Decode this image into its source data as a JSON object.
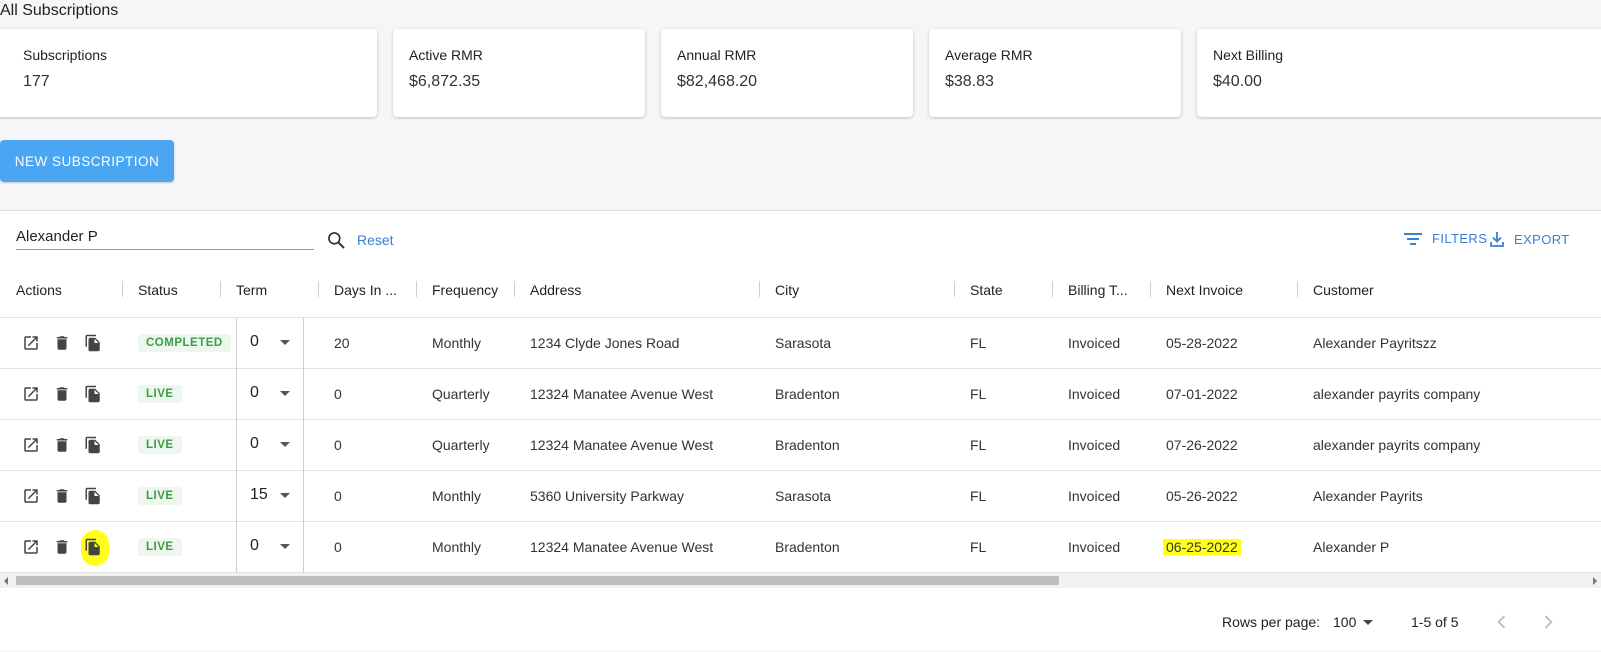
{
  "page_title": "All Subscriptions",
  "stats": [
    {
      "label": "Subscriptions",
      "value": "177"
    },
    {
      "label": "Active RMR",
      "value": "$6,872.35"
    },
    {
      "label": "Annual RMR",
      "value": "$82,468.20"
    },
    {
      "label": "Average RMR",
      "value": "$38.83"
    },
    {
      "label": "Next Billing",
      "value": "$40.00"
    }
  ],
  "new_button_label": "NEW SUBSCRIPTION",
  "toolbar": {
    "search_value": "Alexander P",
    "reset_label": "Reset",
    "filters_label": "FILTERS",
    "export_label": "EXPORT"
  },
  "columns": [
    "Actions",
    "Status",
    "Term",
    "Days In ...",
    "Frequency",
    "Address",
    "City",
    "State",
    "Billing T...",
    "Next Invoice",
    "Customer"
  ],
  "rows": [
    {
      "status": "COMPLETED",
      "term": "0",
      "days": "20",
      "frequency": "Monthly",
      "address": "1234 Clyde Jones Road",
      "city": "Sarasota",
      "state": "FL",
      "billing": "Invoiced",
      "next_invoice": "05-28-2022",
      "customer": "Alexander Payritszz"
    },
    {
      "status": "LIVE",
      "term": "0",
      "days": "0",
      "frequency": "Quarterly",
      "address": "12324 Manatee Avenue West",
      "city": "Bradenton",
      "state": "FL",
      "billing": "Invoiced",
      "next_invoice": "07-01-2022",
      "customer": "alexander payrits company"
    },
    {
      "status": "LIVE",
      "term": "0",
      "days": "0",
      "frequency": "Quarterly",
      "address": "12324 Manatee Avenue West",
      "city": "Bradenton",
      "state": "FL",
      "billing": "Invoiced",
      "next_invoice": "07-26-2022",
      "customer": "alexander payrits company"
    },
    {
      "status": "LIVE",
      "term": "15",
      "days": "0",
      "frequency": "Monthly",
      "address": "5360 University Parkway",
      "city": "Sarasota",
      "state": "FL",
      "billing": "Invoiced",
      "next_invoice": "05-26-2022",
      "customer": "Alexander Payrits"
    },
    {
      "status": "LIVE",
      "term": "0",
      "days": "0",
      "frequency": "Monthly",
      "address": "12324 Manatee Avenue West",
      "city": "Bradenton",
      "state": "FL",
      "billing": "Invoiced",
      "next_invoice": "06-25-2022",
      "customer": "Alexander P"
    }
  ],
  "action_icons": [
    "open-in-new-icon",
    "trash-icon",
    "copy-icon"
  ],
  "highlight_color": "#ffff1a",
  "status_color": "#3e9b45",
  "accent_color": "#4aa6f2",
  "link_color": "#3b7fd0",
  "pagination": {
    "rows_per_page_label": "Rows per page:",
    "rows_per_page": "100",
    "range": "1-5 of 5"
  }
}
